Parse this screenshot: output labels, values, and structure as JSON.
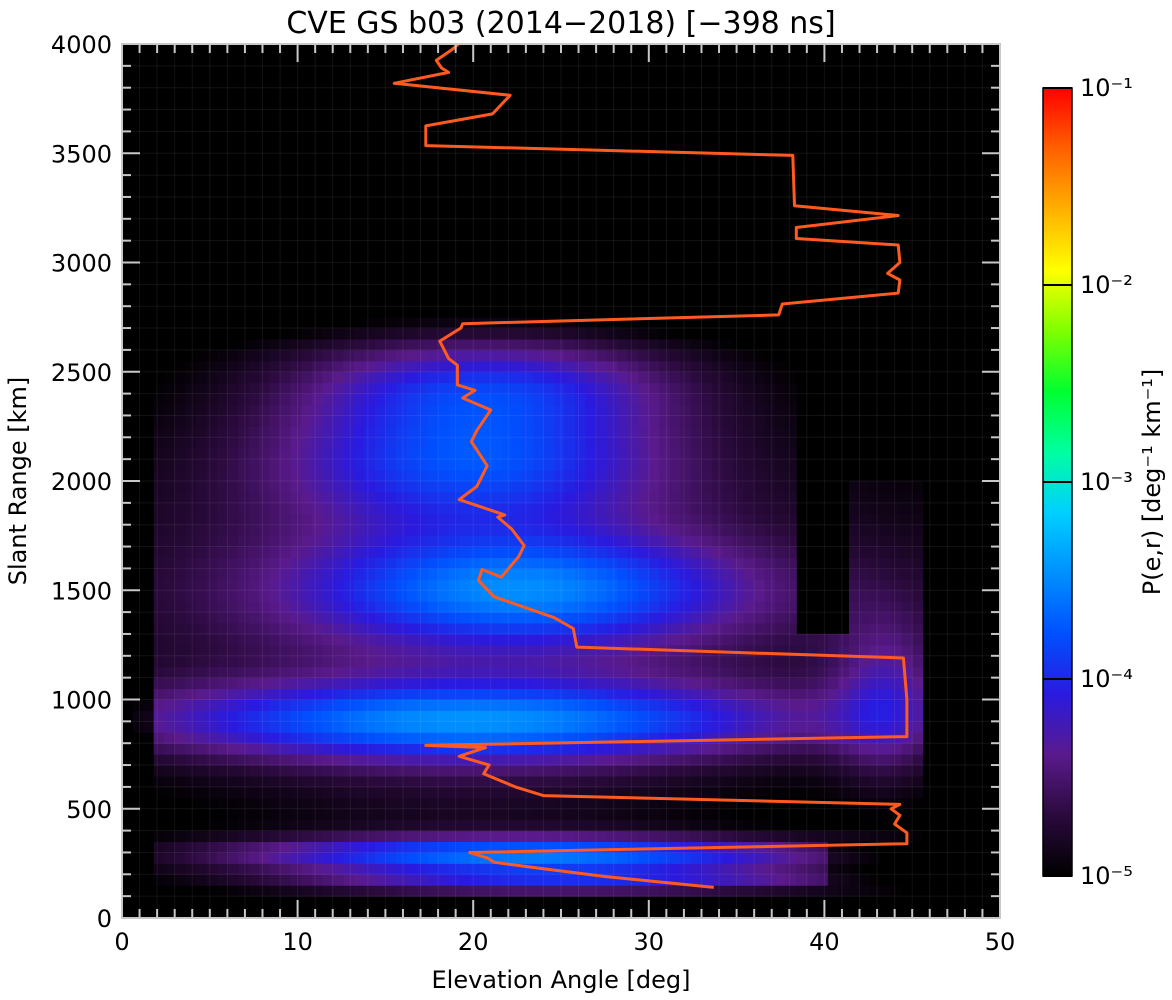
{
  "chart_data": {
    "type": "heatmap",
    "title": "CVE GS b03 (2014−2018) [−398 ns]",
    "xlabel": "Elevation Angle [deg]",
    "ylabel": "Slant Range [km]",
    "xlim": [
      0,
      50
    ],
    "ylim": [
      0,
      4000
    ],
    "x_ticks": [
      "0",
      "10",
      "20",
      "30",
      "40",
      "50"
    ],
    "y_ticks": [
      "0",
      "500",
      "1000",
      "1500",
      "2000",
      "2500",
      "3000",
      "3500",
      "4000"
    ],
    "colorbar": {
      "label": "P(e,r) [deg⁻¹ km⁻¹]",
      "scale": "log",
      "range": [
        1e-05,
        0.1
      ],
      "tick_labels": [
        "10⁻⁵",
        "10⁻⁴",
        "10⁻³",
        "10⁻²",
        "10⁻¹"
      ],
      "tick_values": [
        1e-05,
        0.0001,
        0.001,
        0.01,
        0.1
      ],
      "colors": [
        "#000000",
        "#2a0a3c",
        "#5a1a8c",
        "#2a1adf",
        "#0050ff",
        "#0090ff",
        "#00d0ff",
        "#00ffa0",
        "#00ff30",
        "#80ff00",
        "#ffff00",
        "#ffb000",
        "#ff6000",
        "#ff0000"
      ]
    },
    "grid": true,
    "line_series": {
      "color": "#ff5a1f",
      "points": [
        [
          33.7,
          140
        ],
        [
          27.5,
          190
        ],
        [
          24,
          225
        ],
        [
          21.2,
          255
        ],
        [
          20.8,
          275
        ],
        [
          19.8,
          300
        ],
        [
          44.7,
          340
        ],
        [
          44.7,
          390
        ],
        [
          44,
          430
        ],
        [
          44.3,
          470
        ],
        [
          43.8,
          500
        ],
        [
          44.3,
          520
        ],
        [
          24,
          560
        ],
        [
          22.4,
          600
        ],
        [
          20.6,
          660
        ],
        [
          20.9,
          700
        ],
        [
          19.2,
          740
        ],
        [
          20.7,
          780
        ],
        [
          17.3,
          790
        ],
        [
          44.7,
          830
        ],
        [
          44.7,
          1000
        ],
        [
          44.5,
          1190
        ],
        [
          25.9,
          1240
        ],
        [
          25.7,
          1325
        ],
        [
          24.6,
          1375
        ],
        [
          21.2,
          1470
        ],
        [
          20.3,
          1545
        ],
        [
          20.5,
          1595
        ],
        [
          21.6,
          1560
        ],
        [
          22.6,
          1655
        ],
        [
          22.9,
          1705
        ],
        [
          22.2,
          1780
        ],
        [
          21.4,
          1835
        ],
        [
          21.8,
          1845
        ],
        [
          19.2,
          1915
        ],
        [
          20.2,
          1975
        ],
        [
          20.4,
          2005
        ],
        [
          20.8,
          2070
        ],
        [
          19.9,
          2180
        ],
        [
          20.2,
          2230
        ],
        [
          21,
          2325
        ],
        [
          19.4,
          2380
        ],
        [
          20.1,
          2415
        ],
        [
          19.1,
          2440
        ],
        [
          19.1,
          2530
        ],
        [
          18.6,
          2560
        ],
        [
          18.1,
          2640
        ],
        [
          19.3,
          2700
        ],
        [
          19.4,
          2720
        ],
        [
          37.4,
          2760
        ],
        [
          37.6,
          2810
        ],
        [
          44.2,
          2860
        ],
        [
          44.3,
          2920
        ],
        [
          43.6,
          2950
        ],
        [
          44.3,
          3000
        ],
        [
          44.2,
          3080
        ],
        [
          38.4,
          3110
        ],
        [
          38.4,
          3160
        ],
        [
          44.2,
          3215
        ],
        [
          38.3,
          3260
        ],
        [
          38.2,
          3490
        ],
        [
          17.3,
          3535
        ],
        [
          17.3,
          3625
        ],
        [
          21.1,
          3680
        ],
        [
          22.1,
          3765
        ],
        [
          15.5,
          3820
        ],
        [
          18.6,
          3870
        ],
        [
          18.2,
          3890
        ],
        [
          17.9,
          3925
        ],
        [
          18.8,
          3975
        ],
        [
          19.3,
          4010
        ]
      ]
    }
  }
}
